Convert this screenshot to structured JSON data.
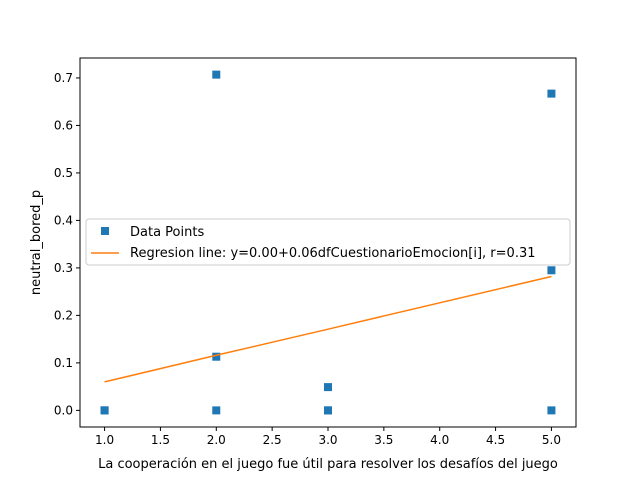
{
  "chart_data": {
    "type": "scatter",
    "title": "",
    "xlabel": "La cooperación en el juego fue útil para resolver los desafíos del juego",
    "ylabel": "neutral_bored_p",
    "xlim": [
      0.78,
      5.22
    ],
    "ylim": [
      -0.035,
      0.742
    ],
    "xticks": [
      1.0,
      1.5,
      2.0,
      2.5,
      3.0,
      3.5,
      4.0,
      4.5,
      5.0
    ],
    "xtick_labels": [
      "1.0",
      "1.5",
      "2.0",
      "2.5",
      "3.0",
      "3.5",
      "4.0",
      "4.5",
      "5.0"
    ],
    "yticks": [
      0.0,
      0.1,
      0.2,
      0.3,
      0.4,
      0.5,
      0.6,
      0.7
    ],
    "ytick_labels": [
      "0.0",
      "0.1",
      "0.2",
      "0.3",
      "0.4",
      "0.5",
      "0.6",
      "0.7"
    ],
    "grid": false,
    "legend_position": "center-left",
    "series": [
      {
        "name": "Data Points",
        "kind": "scatter",
        "marker": "square",
        "color": "#1f77b4",
        "x": [
          1,
          1,
          2,
          2,
          2,
          3,
          3,
          3,
          5,
          5,
          5
        ],
        "y": [
          0.0,
          0.0,
          0.707,
          0.113,
          0.0,
          0.049,
          0.0,
          0.0,
          0.667,
          0.295,
          0.0
        ]
      },
      {
        "name": "Regresion line: y=0.00+0.06dfCuestionarioEmocion[i], r=0.31",
        "kind": "line",
        "color": "#ff7f0e",
        "x": [
          1,
          2,
          3,
          5
        ],
        "y": [
          0.06,
          0.116,
          0.171,
          0.282
        ]
      }
    ]
  }
}
